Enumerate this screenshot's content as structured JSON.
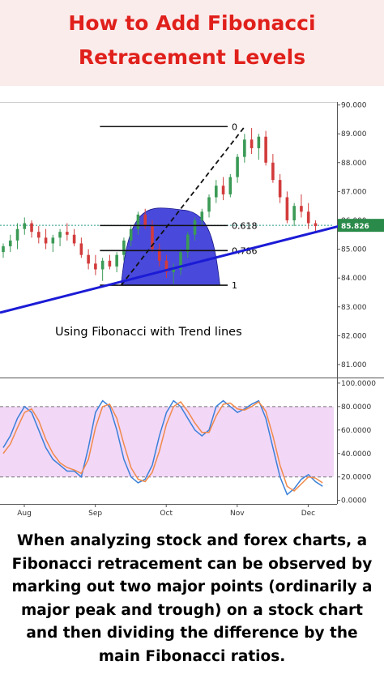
{
  "title": {
    "line1": "How to Add Fibonacci",
    "line2": "Retracement Levels"
  },
  "chart_data": [
    {
      "type": "candlestick",
      "panel": "price",
      "annotation": "Using Fibonacci with Trend lines",
      "yticks": [
        "90.000",
        "89.000",
        "88.000",
        "87.000",
        "86.000",
        "85.000",
        "84.000",
        "83.000",
        "82.000",
        "81.000"
      ],
      "ylim": [
        80.55,
        90.1
      ],
      "current_price": {
        "label": "85.826",
        "value": 85.826
      },
      "fib_levels": [
        {
          "label": "0",
          "value": 89.25
        },
        {
          "label": "0.618",
          "value": 85.82
        },
        {
          "label": "0.786",
          "value": 84.95
        },
        {
          "label": "1",
          "value": 83.75
        }
      ],
      "candles": [
        [
          84.9,
          85.2,
          84.7,
          85.1
        ],
        [
          85.1,
          85.5,
          84.9,
          85.3
        ],
        [
          85.3,
          85.9,
          85.0,
          85.7
        ],
        [
          85.7,
          86.1,
          85.5,
          85.9
        ],
        [
          85.9,
          86.0,
          85.4,
          85.6
        ],
        [
          85.6,
          85.8,
          85.2,
          85.4
        ],
        [
          85.4,
          85.7,
          85.0,
          85.2
        ],
        [
          85.2,
          85.5,
          84.9,
          85.4
        ],
        [
          85.4,
          85.7,
          85.1,
          85.6
        ],
        [
          85.6,
          85.9,
          85.3,
          85.5
        ],
        [
          85.5,
          85.7,
          85.1,
          85.2
        ],
        [
          85.2,
          85.4,
          84.7,
          84.8
        ],
        [
          84.8,
          85.0,
          84.3,
          84.5
        ],
        [
          84.5,
          84.8,
          84.1,
          84.3
        ],
        [
          84.3,
          84.7,
          83.9,
          84.6
        ],
        [
          84.6,
          84.8,
          84.3,
          84.4
        ],
        [
          84.4,
          84.9,
          84.2,
          84.8
        ],
        [
          84.8,
          85.4,
          84.6,
          85.3
        ],
        [
          85.3,
          85.8,
          85.1,
          85.7
        ],
        [
          85.7,
          86.3,
          85.5,
          86.2
        ],
        [
          86.2,
          86.4,
          85.7,
          85.8
        ],
        [
          85.8,
          86.0,
          84.9,
          85.0
        ],
        [
          85.0,
          85.2,
          84.4,
          84.6
        ],
        [
          84.6,
          84.8,
          84.0,
          84.2
        ],
        [
          84.2,
          84.5,
          83.8,
          84.3
        ],
        [
          84.3,
          85.0,
          84.1,
          84.9
        ],
        [
          84.9,
          85.6,
          84.7,
          85.5
        ],
        [
          85.5,
          86.1,
          85.3,
          86.0
        ],
        [
          86.0,
          86.4,
          85.8,
          86.3
        ],
        [
          86.3,
          86.9,
          86.1,
          86.8
        ],
        [
          86.8,
          87.4,
          86.6,
          87.2
        ],
        [
          87.2,
          87.5,
          86.7,
          86.9
        ],
        [
          86.9,
          87.6,
          86.8,
          87.5
        ],
        [
          87.5,
          88.3,
          87.3,
          88.2
        ],
        [
          88.2,
          89.0,
          88.0,
          88.8
        ],
        [
          88.8,
          89.2,
          88.3,
          88.5
        ],
        [
          88.5,
          89.0,
          88.1,
          88.9
        ],
        [
          88.9,
          89.1,
          87.9,
          88.0
        ],
        [
          88.0,
          88.3,
          87.3,
          87.4
        ],
        [
          87.4,
          87.6,
          86.6,
          86.8
        ],
        [
          86.8,
          87.0,
          85.9,
          86.0
        ],
        [
          86.0,
          86.6,
          85.8,
          86.5
        ],
        [
          86.5,
          86.9,
          86.1,
          86.3
        ],
        [
          86.3,
          86.6,
          85.7,
          85.9
        ],
        [
          85.9,
          86.0,
          85.6,
          85.8
        ]
      ],
      "trendline": {
        "from": [
          0,
          82.8
        ],
        "to": [
          45.5,
          85.9
        ]
      },
      "fib_diagonal": {
        "from": [
          13.2,
          83.75
        ],
        "to": [
          30.6,
          89.25
        ]
      }
    },
    {
      "type": "line",
      "panel": "stochastic",
      "yticks": [
        "100.0000",
        "80.0000",
        "60.0000",
        "40.0000",
        "20.0000",
        "0.0000"
      ],
      "ylim": [
        -3,
        102
      ],
      "band": [
        20,
        80
      ],
      "series": [
        {
          "color": "#3a80d9",
          "values": [
            45,
            55,
            70,
            80,
            75,
            60,
            45,
            35,
            30,
            25,
            25,
            20,
            45,
            75,
            85,
            80,
            60,
            35,
            20,
            15,
            18,
            30,
            55,
            75,
            85,
            80,
            70,
            60,
            55,
            60,
            80,
            85,
            80,
            75,
            78,
            82,
            85,
            70,
            45,
            20,
            5,
            10,
            18,
            22,
            16,
            12
          ]
        },
        {
          "color": "#f08a4b",
          "values": [
            40,
            48,
            62,
            75,
            78,
            68,
            52,
            40,
            32,
            28,
            26,
            23,
            35,
            62,
            80,
            82,
            70,
            48,
            28,
            18,
            16,
            24,
            42,
            65,
            80,
            84,
            76,
            66,
            58,
            58,
            72,
            82,
            83,
            78,
            77,
            80,
            84,
            76,
            55,
            30,
            12,
            8,
            14,
            20,
            19,
            15
          ]
        }
      ]
    }
  ],
  "x_axis": {
    "labels": [
      "Aug",
      "Sep",
      "Oct",
      "Nov",
      "Dec"
    ],
    "positions": [
      0,
      10,
      20,
      30,
      40
    ]
  },
  "caption": {
    "lines": [
      "When analyzing stock and forex charts, a",
      "Fibonacci retracement can be observed by",
      "marking out two major points (ordinarily a",
      "major peak and trough) on a stock chart",
      "and then dividing the difference by the",
      "main Fibonacci ratios."
    ]
  },
  "colors": {
    "title": "#e0201b",
    "title_background": "#fbecec",
    "bull": "#3b9a56",
    "bear": "#d23b3b",
    "trendline": "#1b1bd6",
    "fib_fill": "#3a3ad8",
    "stoch_band": "#f2d7f7",
    "price_badge": "#2a8a4a"
  }
}
